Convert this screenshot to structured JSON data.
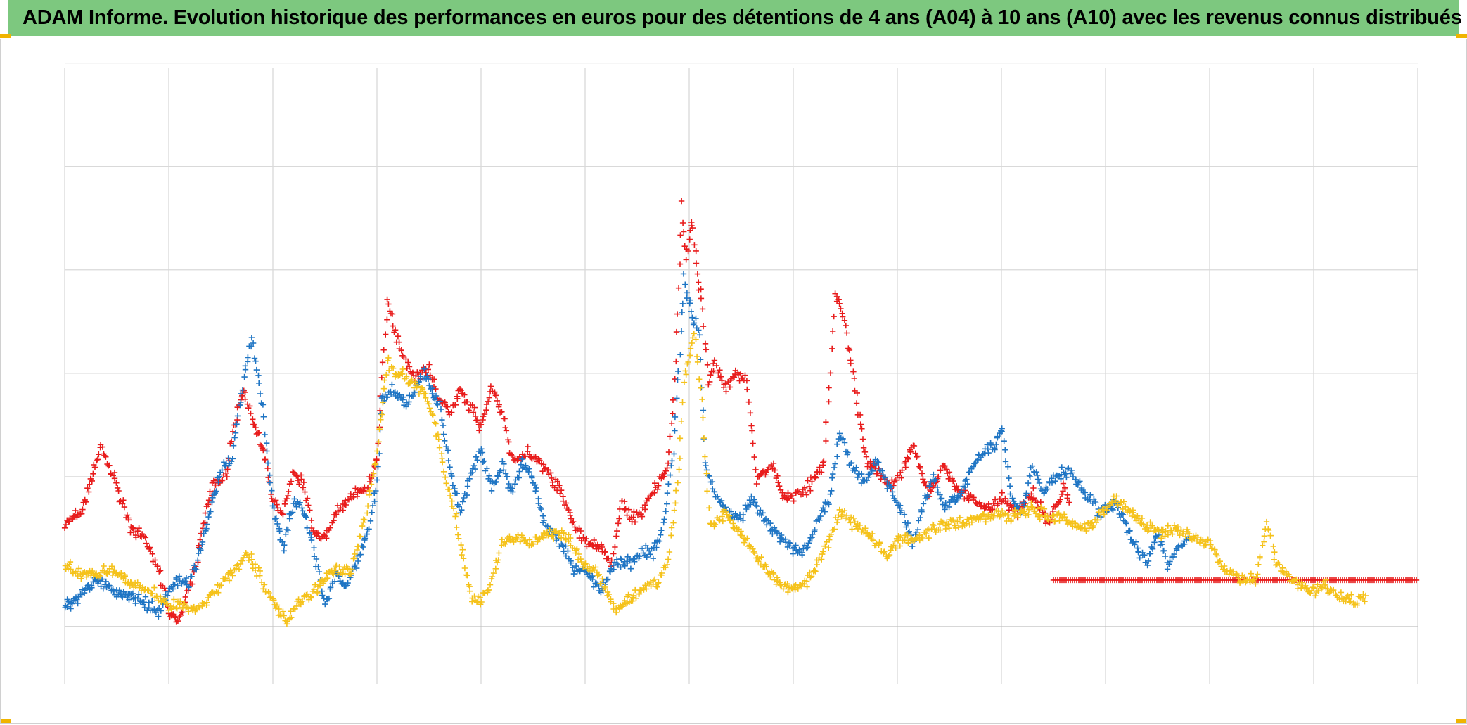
{
  "header": {
    "title": "ADAM Informe. Evolution historique des performances en euros pour des détentions de 4 ans (A04) à 10 ans (A10) avec les revenus connus distribués"
  },
  "colors": {
    "title_bg": "#7dc87f",
    "corner": "#f0b400",
    "grid": "#d9d9d9",
    "axis": "#bfbfbf"
  },
  "chart_data": {
    "type": "scatter",
    "title": "ADAM Informe. Evolution historique des performances en euros pour des détentions de 4 ans (A04) à 10 ans (A10) avec les revenus connus distribués",
    "xlabel": "",
    "ylabel": "",
    "x_unit": "period index (0 to 13, vertical gridline columns)",
    "xlim": [
      0,
      13
    ],
    "ylim": [
      -0.55,
      5.4
    ],
    "x_gridlines": [
      0,
      1,
      2,
      3,
      4,
      5,
      6,
      7,
      8,
      9,
      10,
      11,
      12,
      13
    ],
    "y_gridlines": [
      0,
      1.45,
      2.45,
      3.45,
      4.45,
      5.45
    ],
    "marker": "+",
    "series": [
      {
        "name": "series-red",
        "color": "#e81c1c",
        "points": [
          [
            0.0,
            1.0
          ],
          [
            0.15,
            1.1
          ],
          [
            0.25,
            1.4
          ],
          [
            0.35,
            1.75
          ],
          [
            0.45,
            1.5
          ],
          [
            0.55,
            1.2
          ],
          [
            0.65,
            0.9
          ],
          [
            0.75,
            0.9
          ],
          [
            0.85,
            0.65
          ],
          [
            0.92,
            0.5
          ],
          [
            1.0,
            0.15
          ],
          [
            1.1,
            0.1
          ],
          [
            1.25,
            0.55
          ],
          [
            1.4,
            1.3
          ],
          [
            1.55,
            1.45
          ],
          [
            1.65,
            2.05
          ],
          [
            1.72,
            2.3
          ],
          [
            1.8,
            2.0
          ],
          [
            1.9,
            1.75
          ],
          [
            2.0,
            1.2
          ],
          [
            2.1,
            1.1
          ],
          [
            2.2,
            1.5
          ],
          [
            2.3,
            1.35
          ],
          [
            2.4,
            0.9
          ],
          [
            2.5,
            0.85
          ],
          [
            2.6,
            1.1
          ],
          [
            2.75,
            1.25
          ],
          [
            2.9,
            1.35
          ],
          [
            3.0,
            1.6
          ],
          [
            3.05,
            2.4
          ],
          [
            3.1,
            3.15
          ],
          [
            3.2,
            2.75
          ],
          [
            3.35,
            2.4
          ],
          [
            3.5,
            2.5
          ],
          [
            3.6,
            2.2
          ],
          [
            3.7,
            2.05
          ],
          [
            3.8,
            2.3
          ],
          [
            3.9,
            2.1
          ],
          [
            4.0,
            1.95
          ],
          [
            4.1,
            2.3
          ],
          [
            4.2,
            2.1
          ],
          [
            4.3,
            1.6
          ],
          [
            4.45,
            1.7
          ],
          [
            4.6,
            1.55
          ],
          [
            4.75,
            1.35
          ],
          [
            4.9,
            0.95
          ],
          [
            5.0,
            0.85
          ],
          [
            5.15,
            0.75
          ],
          [
            5.25,
            0.6
          ],
          [
            5.35,
            1.2
          ],
          [
            5.45,
            1.05
          ],
          [
            5.55,
            1.1
          ],
          [
            5.65,
            1.3
          ],
          [
            5.8,
            1.55
          ],
          [
            5.85,
            2.2
          ],
          [
            5.9,
            3.25
          ],
          [
            5.93,
            4.1
          ],
          [
            5.97,
            3.55
          ],
          [
            6.03,
            3.95
          ],
          [
            6.08,
            3.4
          ],
          [
            6.12,
            3.2
          ],
          [
            6.18,
            2.35
          ],
          [
            6.25,
            2.55
          ],
          [
            6.35,
            2.3
          ],
          [
            6.45,
            2.45
          ],
          [
            6.55,
            2.4
          ],
          [
            6.65,
            1.45
          ],
          [
            6.8,
            1.55
          ],
          [
            6.9,
            1.25
          ],
          [
            7.0,
            1.25
          ],
          [
            7.15,
            1.35
          ],
          [
            7.3,
            1.6
          ],
          [
            7.4,
            3.2
          ],
          [
            7.48,
            3.0
          ],
          [
            7.55,
            2.6
          ],
          [
            7.7,
            1.6
          ],
          [
            7.8,
            1.5
          ],
          [
            7.95,
            1.35
          ],
          [
            8.05,
            1.5
          ],
          [
            8.15,
            1.75
          ],
          [
            8.3,
            1.3
          ],
          [
            8.45,
            1.55
          ],
          [
            8.6,
            1.3
          ],
          [
            8.75,
            1.2
          ],
          [
            8.9,
            1.15
          ],
          [
            9.0,
            1.25
          ],
          [
            9.15,
            1.1
          ],
          [
            9.3,
            1.3
          ],
          [
            9.45,
            1.0
          ],
          [
            9.6,
            1.35
          ],
          [
            9.65,
            1.2
          ]
        ],
        "flat_segment": {
          "x_start": 9.5,
          "x_end": 13.0,
          "y": 0.45
        }
      },
      {
        "name": "series-blue",
        "color": "#1f75c4",
        "points": [
          [
            0.0,
            0.2
          ],
          [
            0.15,
            0.3
          ],
          [
            0.3,
            0.45
          ],
          [
            0.45,
            0.35
          ],
          [
            0.6,
            0.3
          ],
          [
            0.75,
            0.25
          ],
          [
            0.9,
            0.15
          ],
          [
            1.0,
            0.35
          ],
          [
            1.1,
            0.45
          ],
          [
            1.2,
            0.4
          ],
          [
            1.35,
            0.9
          ],
          [
            1.5,
            1.55
          ],
          [
            1.6,
            1.6
          ],
          [
            1.7,
            2.25
          ],
          [
            1.8,
            2.8
          ],
          [
            1.9,
            2.1
          ],
          [
            2.0,
            1.2
          ],
          [
            2.1,
            0.75
          ],
          [
            2.2,
            1.2
          ],
          [
            2.3,
            1.1
          ],
          [
            2.4,
            0.7
          ],
          [
            2.5,
            0.2
          ],
          [
            2.6,
            0.5
          ],
          [
            2.7,
            0.35
          ],
          [
            2.8,
            0.6
          ],
          [
            2.9,
            0.85
          ],
          [
            3.0,
            1.4
          ],
          [
            3.05,
            2.2
          ],
          [
            3.15,
            2.3
          ],
          [
            3.3,
            2.15
          ],
          [
            3.45,
            2.45
          ],
          [
            3.6,
            2.15
          ],
          [
            3.7,
            1.55
          ],
          [
            3.8,
            1.1
          ],
          [
            3.9,
            1.5
          ],
          [
            4.0,
            1.7
          ],
          [
            4.1,
            1.35
          ],
          [
            4.2,
            1.55
          ],
          [
            4.3,
            1.3
          ],
          [
            4.4,
            1.6
          ],
          [
            4.5,
            1.4
          ],
          [
            4.6,
            1.0
          ],
          [
            4.7,
            0.9
          ],
          [
            4.8,
            0.75
          ],
          [
            4.9,
            0.55
          ],
          [
            5.0,
            0.55
          ],
          [
            5.15,
            0.35
          ],
          [
            5.3,
            0.65
          ],
          [
            5.45,
            0.6
          ],
          [
            5.55,
            0.75
          ],
          [
            5.65,
            0.7
          ],
          [
            5.75,
            0.95
          ],
          [
            5.85,
            1.7
          ],
          [
            5.9,
            2.5
          ],
          [
            5.95,
            3.35
          ],
          [
            6.03,
            3.0
          ],
          [
            6.1,
            2.85
          ],
          [
            6.15,
            1.55
          ],
          [
            6.25,
            1.3
          ],
          [
            6.4,
            1.1
          ],
          [
            6.5,
            1.05
          ],
          [
            6.6,
            1.25
          ],
          [
            6.75,
            1.0
          ],
          [
            6.9,
            0.85
          ],
          [
            7.0,
            0.75
          ],
          [
            7.1,
            0.7
          ],
          [
            7.2,
            0.95
          ],
          [
            7.35,
            1.25
          ],
          [
            7.45,
            1.9
          ],
          [
            7.55,
            1.55
          ],
          [
            7.7,
            1.4
          ],
          [
            7.8,
            1.6
          ],
          [
            7.95,
            1.3
          ],
          [
            8.05,
            1.1
          ],
          [
            8.15,
            0.8
          ],
          [
            8.25,
            1.2
          ],
          [
            8.35,
            1.45
          ],
          [
            8.45,
            1.15
          ],
          [
            8.6,
            1.25
          ],
          [
            8.75,
            1.6
          ],
          [
            8.85,
            1.7
          ],
          [
            8.95,
            1.75
          ],
          [
            9.0,
            1.95
          ],
          [
            9.1,
            1.2
          ],
          [
            9.2,
            1.15
          ],
          [
            9.3,
            1.55
          ],
          [
            9.4,
            1.3
          ],
          [
            9.5,
            1.45
          ],
          [
            9.65,
            1.5
          ],
          [
            9.8,
            1.3
          ],
          [
            9.95,
            1.1
          ],
          [
            10.1,
            1.2
          ],
          [
            10.25,
            0.85
          ],
          [
            10.4,
            0.6
          ],
          [
            10.5,
            0.9
          ],
          [
            10.6,
            0.6
          ],
          [
            10.7,
            0.75
          ],
          [
            10.8,
            0.85
          ]
        ]
      },
      {
        "name": "series-yellow",
        "color": "#f5c21b",
        "points": [
          [
            0.0,
            0.6
          ],
          [
            0.15,
            0.5
          ],
          [
            0.3,
            0.5
          ],
          [
            0.45,
            0.55
          ],
          [
            0.6,
            0.45
          ],
          [
            0.75,
            0.35
          ],
          [
            0.9,
            0.3
          ],
          [
            1.0,
            0.2
          ],
          [
            1.1,
            0.2
          ],
          [
            1.25,
            0.15
          ],
          [
            1.4,
            0.3
          ],
          [
            1.55,
            0.45
          ],
          [
            1.65,
            0.55
          ],
          [
            1.75,
            0.7
          ],
          [
            1.85,
            0.55
          ],
          [
            1.95,
            0.35
          ],
          [
            2.05,
            0.15
          ],
          [
            2.15,
            0.05
          ],
          [
            2.25,
            0.25
          ],
          [
            2.35,
            0.3
          ],
          [
            2.45,
            0.4
          ],
          [
            2.6,
            0.55
          ],
          [
            2.75,
            0.55
          ],
          [
            2.9,
            1.1
          ],
          [
            3.0,
            1.7
          ],
          [
            3.1,
            2.55
          ],
          [
            3.2,
            2.45
          ],
          [
            3.35,
            2.35
          ],
          [
            3.45,
            2.25
          ],
          [
            3.55,
            2.0
          ],
          [
            3.65,
            1.5
          ],
          [
            3.75,
            1.1
          ],
          [
            3.8,
            0.8
          ],
          [
            3.9,
            0.3
          ],
          [
            4.0,
            0.25
          ],
          [
            4.1,
            0.45
          ],
          [
            4.2,
            0.8
          ],
          [
            4.35,
            0.85
          ],
          [
            4.5,
            0.8
          ],
          [
            4.65,
            0.9
          ],
          [
            4.8,
            0.9
          ],
          [
            4.9,
            0.75
          ],
          [
            5.0,
            0.6
          ],
          [
            5.1,
            0.55
          ],
          [
            5.2,
            0.35
          ],
          [
            5.3,
            0.15
          ],
          [
            5.4,
            0.25
          ],
          [
            5.55,
            0.35
          ],
          [
            5.7,
            0.45
          ],
          [
            5.8,
            0.65
          ],
          [
            5.9,
            1.5
          ],
          [
            5.95,
            2.35
          ],
          [
            6.05,
            2.85
          ],
          [
            6.12,
            2.2
          ],
          [
            6.2,
            0.95
          ],
          [
            6.35,
            1.1
          ],
          [
            6.5,
            0.9
          ],
          [
            6.6,
            0.75
          ],
          [
            6.75,
            0.55
          ],
          [
            6.9,
            0.4
          ],
          [
            7.05,
            0.35
          ],
          [
            7.2,
            0.55
          ],
          [
            7.3,
            0.75
          ],
          [
            7.45,
            1.1
          ],
          [
            7.6,
            1.0
          ],
          [
            7.75,
            0.85
          ],
          [
            7.9,
            0.7
          ],
          [
            8.05,
            0.85
          ],
          [
            8.2,
            0.85
          ],
          [
            8.35,
            0.95
          ],
          [
            8.5,
            1.0
          ],
          [
            8.65,
            1.0
          ],
          [
            8.8,
            1.05
          ],
          [
            8.95,
            1.1
          ],
          [
            9.1,
            1.05
          ],
          [
            9.3,
            1.15
          ],
          [
            9.45,
            1.05
          ],
          [
            9.6,
            1.05
          ],
          [
            9.75,
            0.95
          ],
          [
            9.9,
            1.0
          ],
          [
            10.1,
            1.25
          ],
          [
            10.25,
            1.1
          ],
          [
            10.4,
            0.95
          ],
          [
            10.55,
            0.9
          ],
          [
            10.7,
            0.95
          ],
          [
            10.85,
            0.85
          ],
          [
            11.0,
            0.8
          ],
          [
            11.15,
            0.55
          ],
          [
            11.3,
            0.45
          ],
          [
            11.45,
            0.45
          ],
          [
            11.55,
            1.0
          ],
          [
            11.65,
            0.6
          ],
          [
            11.8,
            0.45
          ],
          [
            11.95,
            0.35
          ],
          [
            12.1,
            0.4
          ],
          [
            12.25,
            0.3
          ],
          [
            12.4,
            0.25
          ],
          [
            12.5,
            0.3
          ]
        ]
      }
    ]
  }
}
